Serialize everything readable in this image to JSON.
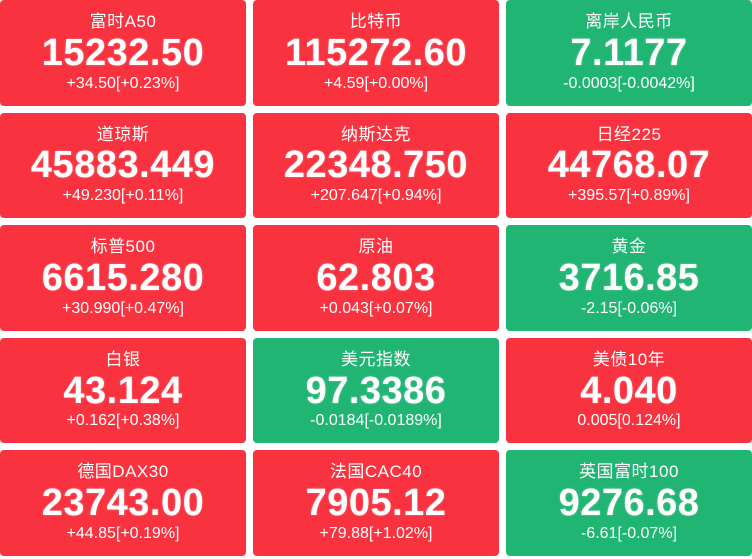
{
  "colors": {
    "up": "#f8323f",
    "down": "#21b573",
    "text": "#ffffff",
    "page_background": "#ffffff"
  },
  "tiles": [
    {
      "name": "富时A50",
      "price": "15232.50",
      "change": "+34.50[+0.23%]",
      "direction": "up"
    },
    {
      "name": "比特币",
      "price": "115272.60",
      "change": "+4.59[+0.00%]",
      "direction": "up"
    },
    {
      "name": "离岸人民币",
      "price": "7.1177",
      "change": "-0.0003[-0.0042%]",
      "direction": "down"
    },
    {
      "name": "道琼斯",
      "price": "45883.449",
      "change": "+49.230[+0.11%]",
      "direction": "up"
    },
    {
      "name": "纳斯达克",
      "price": "22348.750",
      "change": "+207.647[+0.94%]",
      "direction": "up"
    },
    {
      "name": "日经225",
      "price": "44768.07",
      "change": "+395.57[+0.89%]",
      "direction": "up"
    },
    {
      "name": "标普500",
      "price": "6615.280",
      "change": "+30.990[+0.47%]",
      "direction": "up"
    },
    {
      "name": "原油",
      "price": "62.803",
      "change": "+0.043[+0.07%]",
      "direction": "up"
    },
    {
      "name": "黄金",
      "price": "3716.85",
      "change": "-2.15[-0.06%]",
      "direction": "down"
    },
    {
      "name": "白银",
      "price": "43.124",
      "change": "+0.162[+0.38%]",
      "direction": "up"
    },
    {
      "name": "美元指数",
      "price": "97.3386",
      "change": "-0.0184[-0.0189%]",
      "direction": "down"
    },
    {
      "name": "美债10年",
      "price": "4.040",
      "change": "0.005[0.124%]",
      "direction": "up"
    },
    {
      "name": "德国DAX30",
      "price": "23743.00",
      "change": "+44.85[+0.19%]",
      "direction": "up"
    },
    {
      "name": "法国CAC40",
      "price": "7905.12",
      "change": "+79.88[+1.02%]",
      "direction": "up"
    },
    {
      "name": "英国富时100",
      "price": "9276.68",
      "change": "-6.61[-0.07%]",
      "direction": "down"
    }
  ]
}
